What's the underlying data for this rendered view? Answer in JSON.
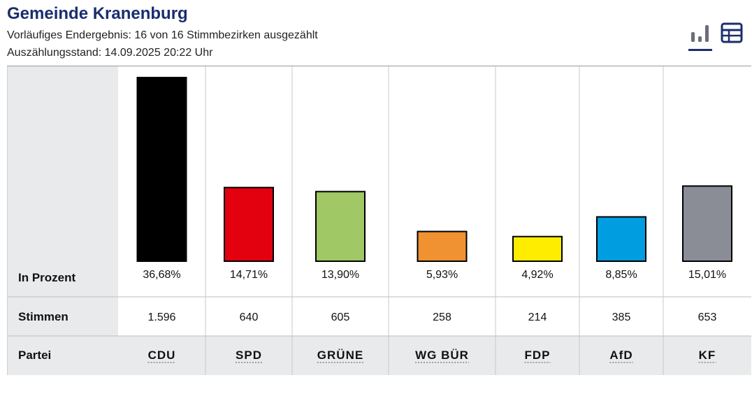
{
  "header": {
    "title": "Gemeinde Kranenburg",
    "status_line": "Vorläufiges Endergebnis: 16 von 16 Stimmbezirken ausgezählt",
    "timestamp_line": "Auszählungsstand: 14.09.2025 20:22 Uhr"
  },
  "view_toggle": {
    "active": "chart",
    "chart_icon": "bar-chart-icon",
    "table_icon": "table-icon"
  },
  "colors": {
    "accent": "#1a2e6e",
    "label_column_bg": "#e9eaec",
    "party_row_bg": "#e9eaec"
  },
  "row_labels": {
    "percent": "In Prozent",
    "votes": "Stimmen",
    "party": "Partei"
  },
  "chart_data": {
    "type": "bar",
    "categories": [
      "CDU",
      "SPD",
      "GRÜNE",
      "WG BÜR",
      "FDP",
      "AfD",
      "KF"
    ],
    "values": [
      36.68,
      14.71,
      13.9,
      5.93,
      4.92,
      8.85,
      15.01
    ],
    "value_labels": [
      "36,68%",
      "14,71%",
      "13,90%",
      "5,93%",
      "4,92%",
      "8,85%",
      "15,01%"
    ],
    "votes": [
      "1.596",
      "640",
      "605",
      "258",
      "214",
      "385",
      "653"
    ],
    "colors": [
      "#000000",
      "#e3000f",
      "#a0c864",
      "#f09132",
      "#ffed00",
      "#009ee0",
      "#8a8d96"
    ],
    "ylim": [
      0,
      36.68
    ]
  }
}
